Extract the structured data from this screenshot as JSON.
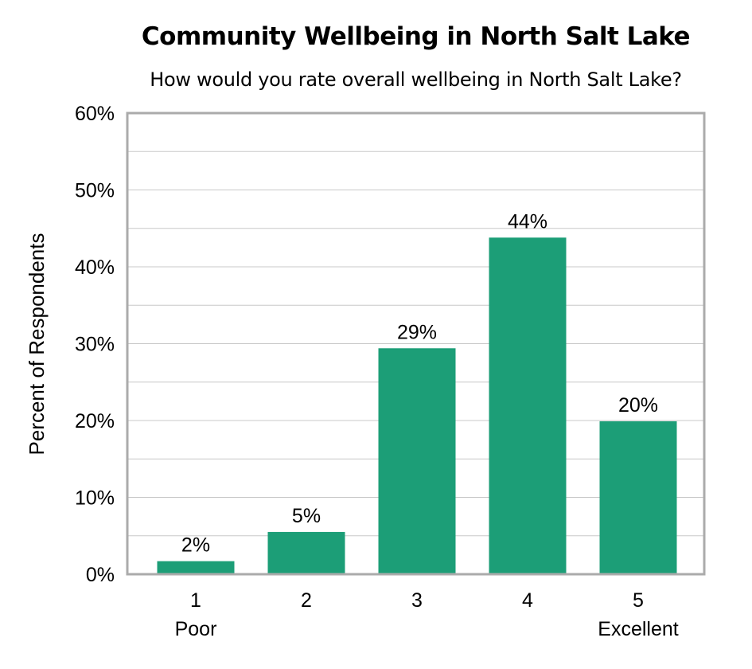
{
  "chart_data": {
    "type": "bar",
    "title": "Community Wellbeing in North Salt Lake",
    "subtitle": "How would you rate overall wellbeing in North Salt Lake?",
    "ylabel": "Percent of Respondents",
    "xlabel": "",
    "categories": [
      "1",
      "2",
      "3",
      "4",
      "5"
    ],
    "category_sublabels": [
      "Poor",
      "",
      "",
      "",
      "Excellent"
    ],
    "values": [
      1.7,
      5.5,
      29.4,
      43.8,
      19.9
    ],
    "data_labels": [
      "2%",
      "5%",
      "29%",
      "44%",
      "20%"
    ],
    "ylim": [
      0,
      60
    ],
    "yticks": [
      "0%",
      "10%",
      "20%",
      "30%",
      "40%",
      "50%",
      "60%"
    ],
    "grid": true,
    "bar_color": "#1c9e77"
  }
}
